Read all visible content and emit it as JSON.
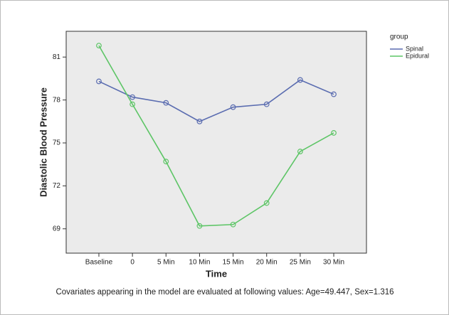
{
  "chart_data": {
    "type": "line",
    "x_label": "Time",
    "y_label": "Diastolic Blood Pressure",
    "categories": [
      "Baseline",
      "0",
      "5 Min",
      "10 Min",
      "15 Min",
      "20 Min",
      "25 Min",
      "30 Min"
    ],
    "series": [
      {
        "name": "Spinal",
        "color": "#5a6cb0",
        "values": [
          79.3,
          78.2,
          77.8,
          76.5,
          77.5,
          77.7,
          79.4,
          78.4
        ]
      },
      {
        "name": "Epidural",
        "color": "#5dc566",
        "values": [
          81.8,
          77.7,
          73.7,
          69.2,
          69.3,
          70.8,
          74.4,
          75.7
        ]
      }
    ],
    "ylim": [
      67.3,
      82.8
    ],
    "yticks": [
      69,
      72,
      75,
      78,
      81
    ],
    "legend_title": "group",
    "legend_position": "right",
    "footnote": "Covariates appearing in the model are evaluated at following values: Age=49.447, Sex=1.316"
  }
}
